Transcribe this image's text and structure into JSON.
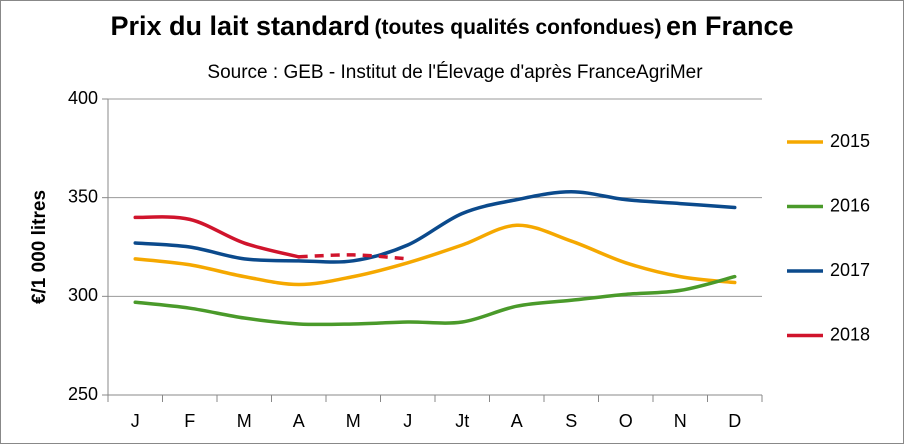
{
  "chart_data": {
    "type": "line",
    "title": [
      "Prix du lait standard",
      "(toutes qualités confondues)",
      "en France"
    ],
    "subtitle": "Source : GEB - Institut de l'Élevage d'après FranceAgriMer",
    "y_label": "€/1 000 litres",
    "categories": [
      "J",
      "F",
      "M",
      "A",
      "M",
      "J",
      "Jt",
      "A",
      "S",
      "O",
      "N",
      "D"
    ],
    "ylim": [
      250,
      400
    ],
    "yticks": [
      250,
      300,
      350,
      400
    ],
    "grid": true,
    "legend": "right",
    "series": [
      {
        "name": "2015",
        "color": "#f5a800",
        "values": [
          319,
          316,
          310,
          306,
          310,
          317,
          326,
          336,
          328,
          317,
          310,
          307
        ]
      },
      {
        "name": "2016",
        "color": "#4a9a2a",
        "values": [
          297,
          294,
          289,
          286,
          286,
          287,
          287,
          295,
          298,
          301,
          303,
          310
        ]
      },
      {
        "name": "2017",
        "color": "#0b4a8c",
        "values": [
          327,
          325,
          319,
          318,
          318,
          326,
          342,
          349,
          353,
          349,
          347,
          345
        ]
      },
      {
        "name": "2018",
        "color": "#d0142c",
        "values": [
          340,
          339,
          327,
          320,
          321,
          319,
          null,
          null,
          null,
          null,
          null,
          null
        ],
        "dashed_from": 3
      }
    ]
  }
}
